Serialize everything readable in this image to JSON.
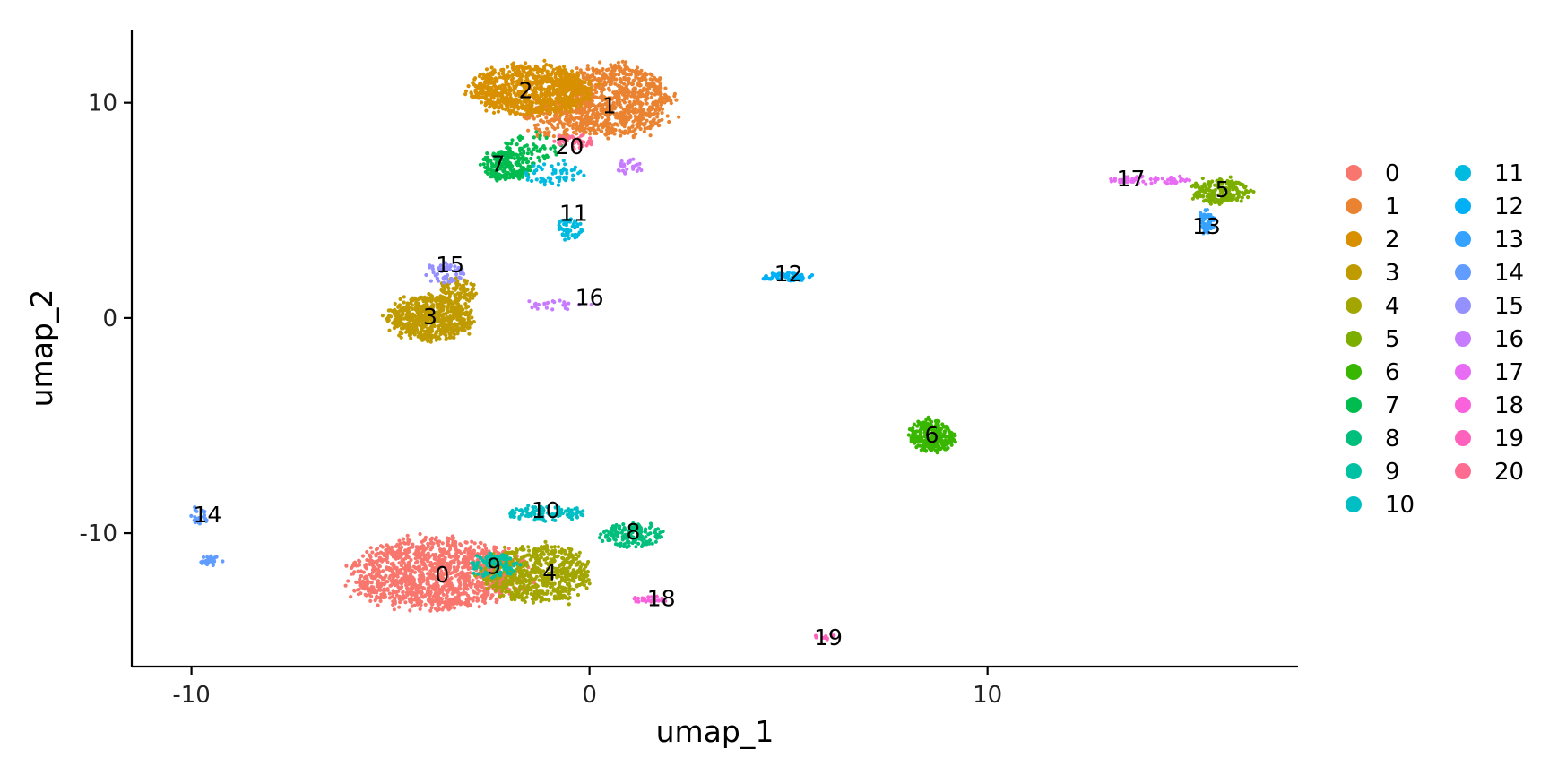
{
  "chart_data": {
    "type": "scatter",
    "title": "",
    "xlabel": "umap_1",
    "ylabel": "umap_2",
    "xlim": [
      -11.5,
      17.8
    ],
    "ylim": [
      -16.2,
      13.4
    ],
    "x_ticks": [
      {
        "value": -10,
        "label": "-10"
      },
      {
        "value": 0,
        "label": "0"
      },
      {
        "value": 10,
        "label": "10"
      }
    ],
    "y_ticks": [
      {
        "value": 10,
        "label": "10"
      },
      {
        "value": 0,
        "label": "0"
      },
      {
        "value": -10,
        "label": "-10"
      }
    ],
    "grid": false,
    "legend_position": "right",
    "legend_columns": 2,
    "series": [
      {
        "name": "0",
        "color": "#F8766D",
        "label_pos": [
          -3.7,
          -12.0
        ],
        "blobs": [
          {
            "cx": -3.8,
            "cy": -11.9,
            "rx": 2.3,
            "ry": 1.7,
            "n": 1300
          }
        ]
      },
      {
        "name": "1",
        "color": "#EA8331",
        "label_pos": [
          0.5,
          9.8
        ],
        "blobs": [
          {
            "cx": 0.6,
            "cy": 10.1,
            "rx": 1.5,
            "ry": 1.8,
            "n": 900
          },
          {
            "cx": -0.8,
            "cy": 9.3,
            "rx": 1.0,
            "ry": 1.0,
            "n": 150
          }
        ]
      },
      {
        "name": "2",
        "color": "#D89000",
        "label_pos": [
          -1.6,
          10.5
        ],
        "blobs": [
          {
            "cx": -1.5,
            "cy": 10.6,
            "rx": 1.6,
            "ry": 1.2,
            "n": 850
          }
        ]
      },
      {
        "name": "3",
        "color": "#C09B00",
        "label_pos": [
          -4.0,
          0.0
        ],
        "blobs": [
          {
            "cx": -4.0,
            "cy": 0.0,
            "rx": 1.1,
            "ry": 1.1,
            "n": 600
          },
          {
            "cx": -3.3,
            "cy": 1.3,
            "rx": 0.5,
            "ry": 0.6,
            "n": 80
          }
        ]
      },
      {
        "name": "4",
        "color": "#A3A500",
        "label_pos": [
          -1.0,
          -11.9
        ],
        "blobs": [
          {
            "cx": -1.3,
            "cy": -11.9,
            "rx": 1.4,
            "ry": 1.4,
            "n": 650
          }
        ]
      },
      {
        "name": "5",
        "color": "#7CAE00",
        "label_pos": [
          15.9,
          5.9
        ],
        "blobs": [
          {
            "cx": 15.9,
            "cy": 5.9,
            "rx": 0.8,
            "ry": 0.6,
            "n": 200
          }
        ]
      },
      {
        "name": "6",
        "color": "#39B600",
        "label_pos": [
          8.6,
          -5.5
        ],
        "blobs": [
          {
            "cx": 8.6,
            "cy": -5.5,
            "rx": 0.6,
            "ry": 0.8,
            "n": 260
          }
        ]
      },
      {
        "name": "7",
        "color": "#00BB4E",
        "label_pos": [
          -2.3,
          7.1
        ],
        "blobs": [
          {
            "cx": -2.1,
            "cy": 7.1,
            "rx": 0.7,
            "ry": 0.7,
            "n": 220
          },
          {
            "cx": -1.4,
            "cy": 7.9,
            "rx": 0.8,
            "ry": 0.7,
            "n": 60
          }
        ]
      },
      {
        "name": "8",
        "color": "#00BF7D",
        "label_pos": [
          1.1,
          -10.0
        ],
        "blobs": [
          {
            "cx": 1.1,
            "cy": -10.1,
            "rx": 0.8,
            "ry": 0.6,
            "n": 140
          }
        ]
      },
      {
        "name": "9",
        "color": "#00C1A3",
        "label_pos": [
          -2.4,
          -11.6
        ],
        "blobs": [
          {
            "cx": -2.4,
            "cy": -11.5,
            "rx": 0.6,
            "ry": 0.6,
            "n": 100
          }
        ]
      },
      {
        "name": "10",
        "color": "#00BFC4",
        "label_pos": [
          -1.1,
          -9.0
        ],
        "blobs": [
          {
            "cx": -1.1,
            "cy": -9.1,
            "rx": 1.0,
            "ry": 0.35,
            "n": 110
          }
        ]
      },
      {
        "name": "11",
        "color": "#00BAE0",
        "label_pos": [
          -0.4,
          4.8
        ],
        "blobs": [
          {
            "cx": -0.5,
            "cy": 4.2,
            "rx": 0.35,
            "ry": 0.5,
            "n": 60
          },
          {
            "cx": -0.9,
            "cy": 6.7,
            "rx": 0.8,
            "ry": 0.6,
            "n": 60
          }
        ]
      },
      {
        "name": "12",
        "color": "#00B0F6",
        "label_pos": [
          5.0,
          2.0
        ],
        "blobs": [
          {
            "cx": 4.9,
            "cy": 1.9,
            "rx": 0.6,
            "ry": 0.2,
            "n": 70
          }
        ]
      },
      {
        "name": "13",
        "color": "#35A2FF",
        "label_pos": [
          15.5,
          4.2
        ],
        "blobs": [
          {
            "cx": 15.5,
            "cy": 4.5,
            "rx": 0.2,
            "ry": 0.6,
            "n": 60
          }
        ]
      },
      {
        "name": "14",
        "color": "#619CFF",
        "label_pos": [
          -9.6,
          -9.2
        ],
        "blobs": [
          {
            "cx": -9.8,
            "cy": -9.2,
            "rx": 0.25,
            "ry": 0.4,
            "n": 25
          },
          {
            "cx": -9.5,
            "cy": -11.3,
            "rx": 0.35,
            "ry": 0.25,
            "n": 25
          }
        ]
      },
      {
        "name": "15",
        "color": "#9590FF",
        "label_pos": [
          -3.5,
          2.4
        ],
        "blobs": [
          {
            "cx": -3.6,
            "cy": 2.1,
            "rx": 0.5,
            "ry": 0.5,
            "n": 60
          }
        ]
      },
      {
        "name": "16",
        "color": "#C77CFF",
        "label_pos": [
          0.0,
          0.9
        ],
        "blobs": [
          {
            "cx": -0.9,
            "cy": 0.6,
            "rx": 1.0,
            "ry": 0.25,
            "n": 25
          },
          {
            "cx": 1.0,
            "cy": 7.0,
            "rx": 0.35,
            "ry": 0.4,
            "n": 25
          }
        ]
      },
      {
        "name": "17",
        "color": "#E76BF3",
        "label_pos": [
          13.6,
          6.4
        ],
        "blobs": [
          {
            "cx": 14.1,
            "cy": 6.4,
            "rx": 1.1,
            "ry": 0.2,
            "n": 70
          }
        ]
      },
      {
        "name": "18",
        "color": "#FA62DB",
        "label_pos": [
          1.8,
          -13.1
        ],
        "blobs": [
          {
            "cx": 1.5,
            "cy": -13.1,
            "rx": 0.5,
            "ry": 0.15,
            "n": 25
          }
        ]
      },
      {
        "name": "19",
        "color": "#FF62BC",
        "label_pos": [
          6.0,
          -14.9
        ],
        "blobs": [
          {
            "cx": 5.9,
            "cy": -14.8,
            "rx": 0.3,
            "ry": 0.15,
            "n": 10
          }
        ]
      },
      {
        "name": "20",
        "color": "#FF6C91",
        "label_pos": [
          -0.5,
          7.9
        ],
        "blobs": [
          {
            "cx": -0.4,
            "cy": 8.2,
            "rx": 0.5,
            "ry": 0.35,
            "n": 40
          }
        ]
      }
    ]
  }
}
